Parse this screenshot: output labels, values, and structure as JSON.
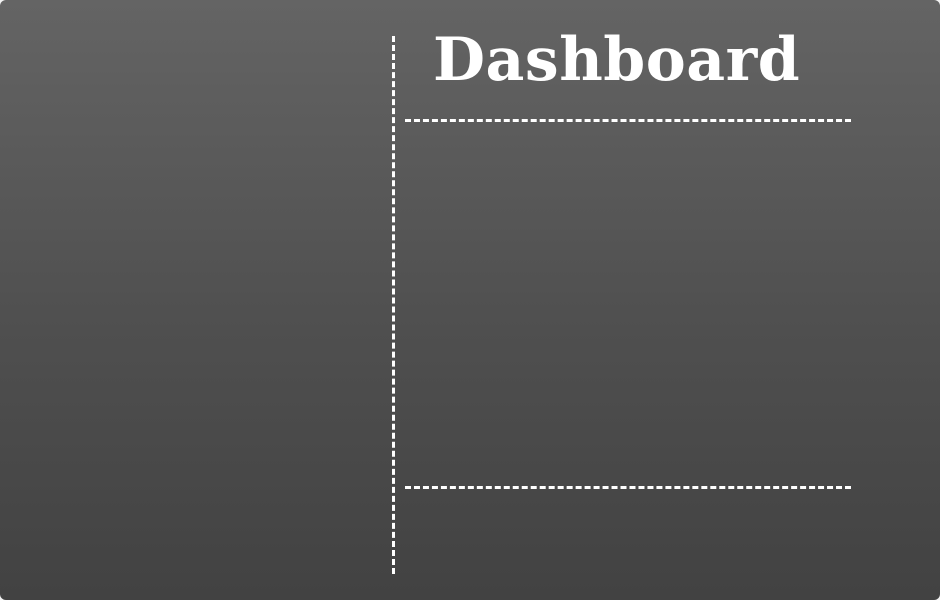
{
  "page": {
    "title": "Dashboard"
  },
  "colors": {
    "background_top": "#646464",
    "background_bottom": "#424242",
    "foreground": "#ffffff"
  }
}
